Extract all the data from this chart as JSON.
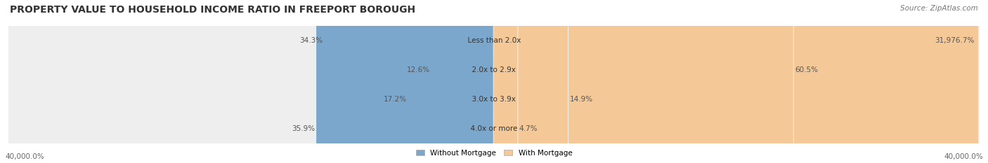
{
  "title": "PROPERTY VALUE TO HOUSEHOLD INCOME RATIO IN FREEPORT BOROUGH",
  "source": "Source: ZipAtlas.com",
  "categories": [
    "Less than 2.0x",
    "2.0x to 2.9x",
    "3.0x to 3.9x",
    "4.0x or more"
  ],
  "without_mortgage": [
    34.3,
    12.6,
    17.2,
    35.9
  ],
  "with_mortgage": [
    31976.7,
    60.5,
    14.9,
    4.7
  ],
  "without_mortgage_color": "#7ba7cc",
  "with_mortgage_color": "#f5c897",
  "title_fontsize": 10,
  "source_fontsize": 7.5,
  "axis_label_left": "40,000.0%",
  "axis_label_right": "40,000.0%",
  "max_val": 40000.0
}
